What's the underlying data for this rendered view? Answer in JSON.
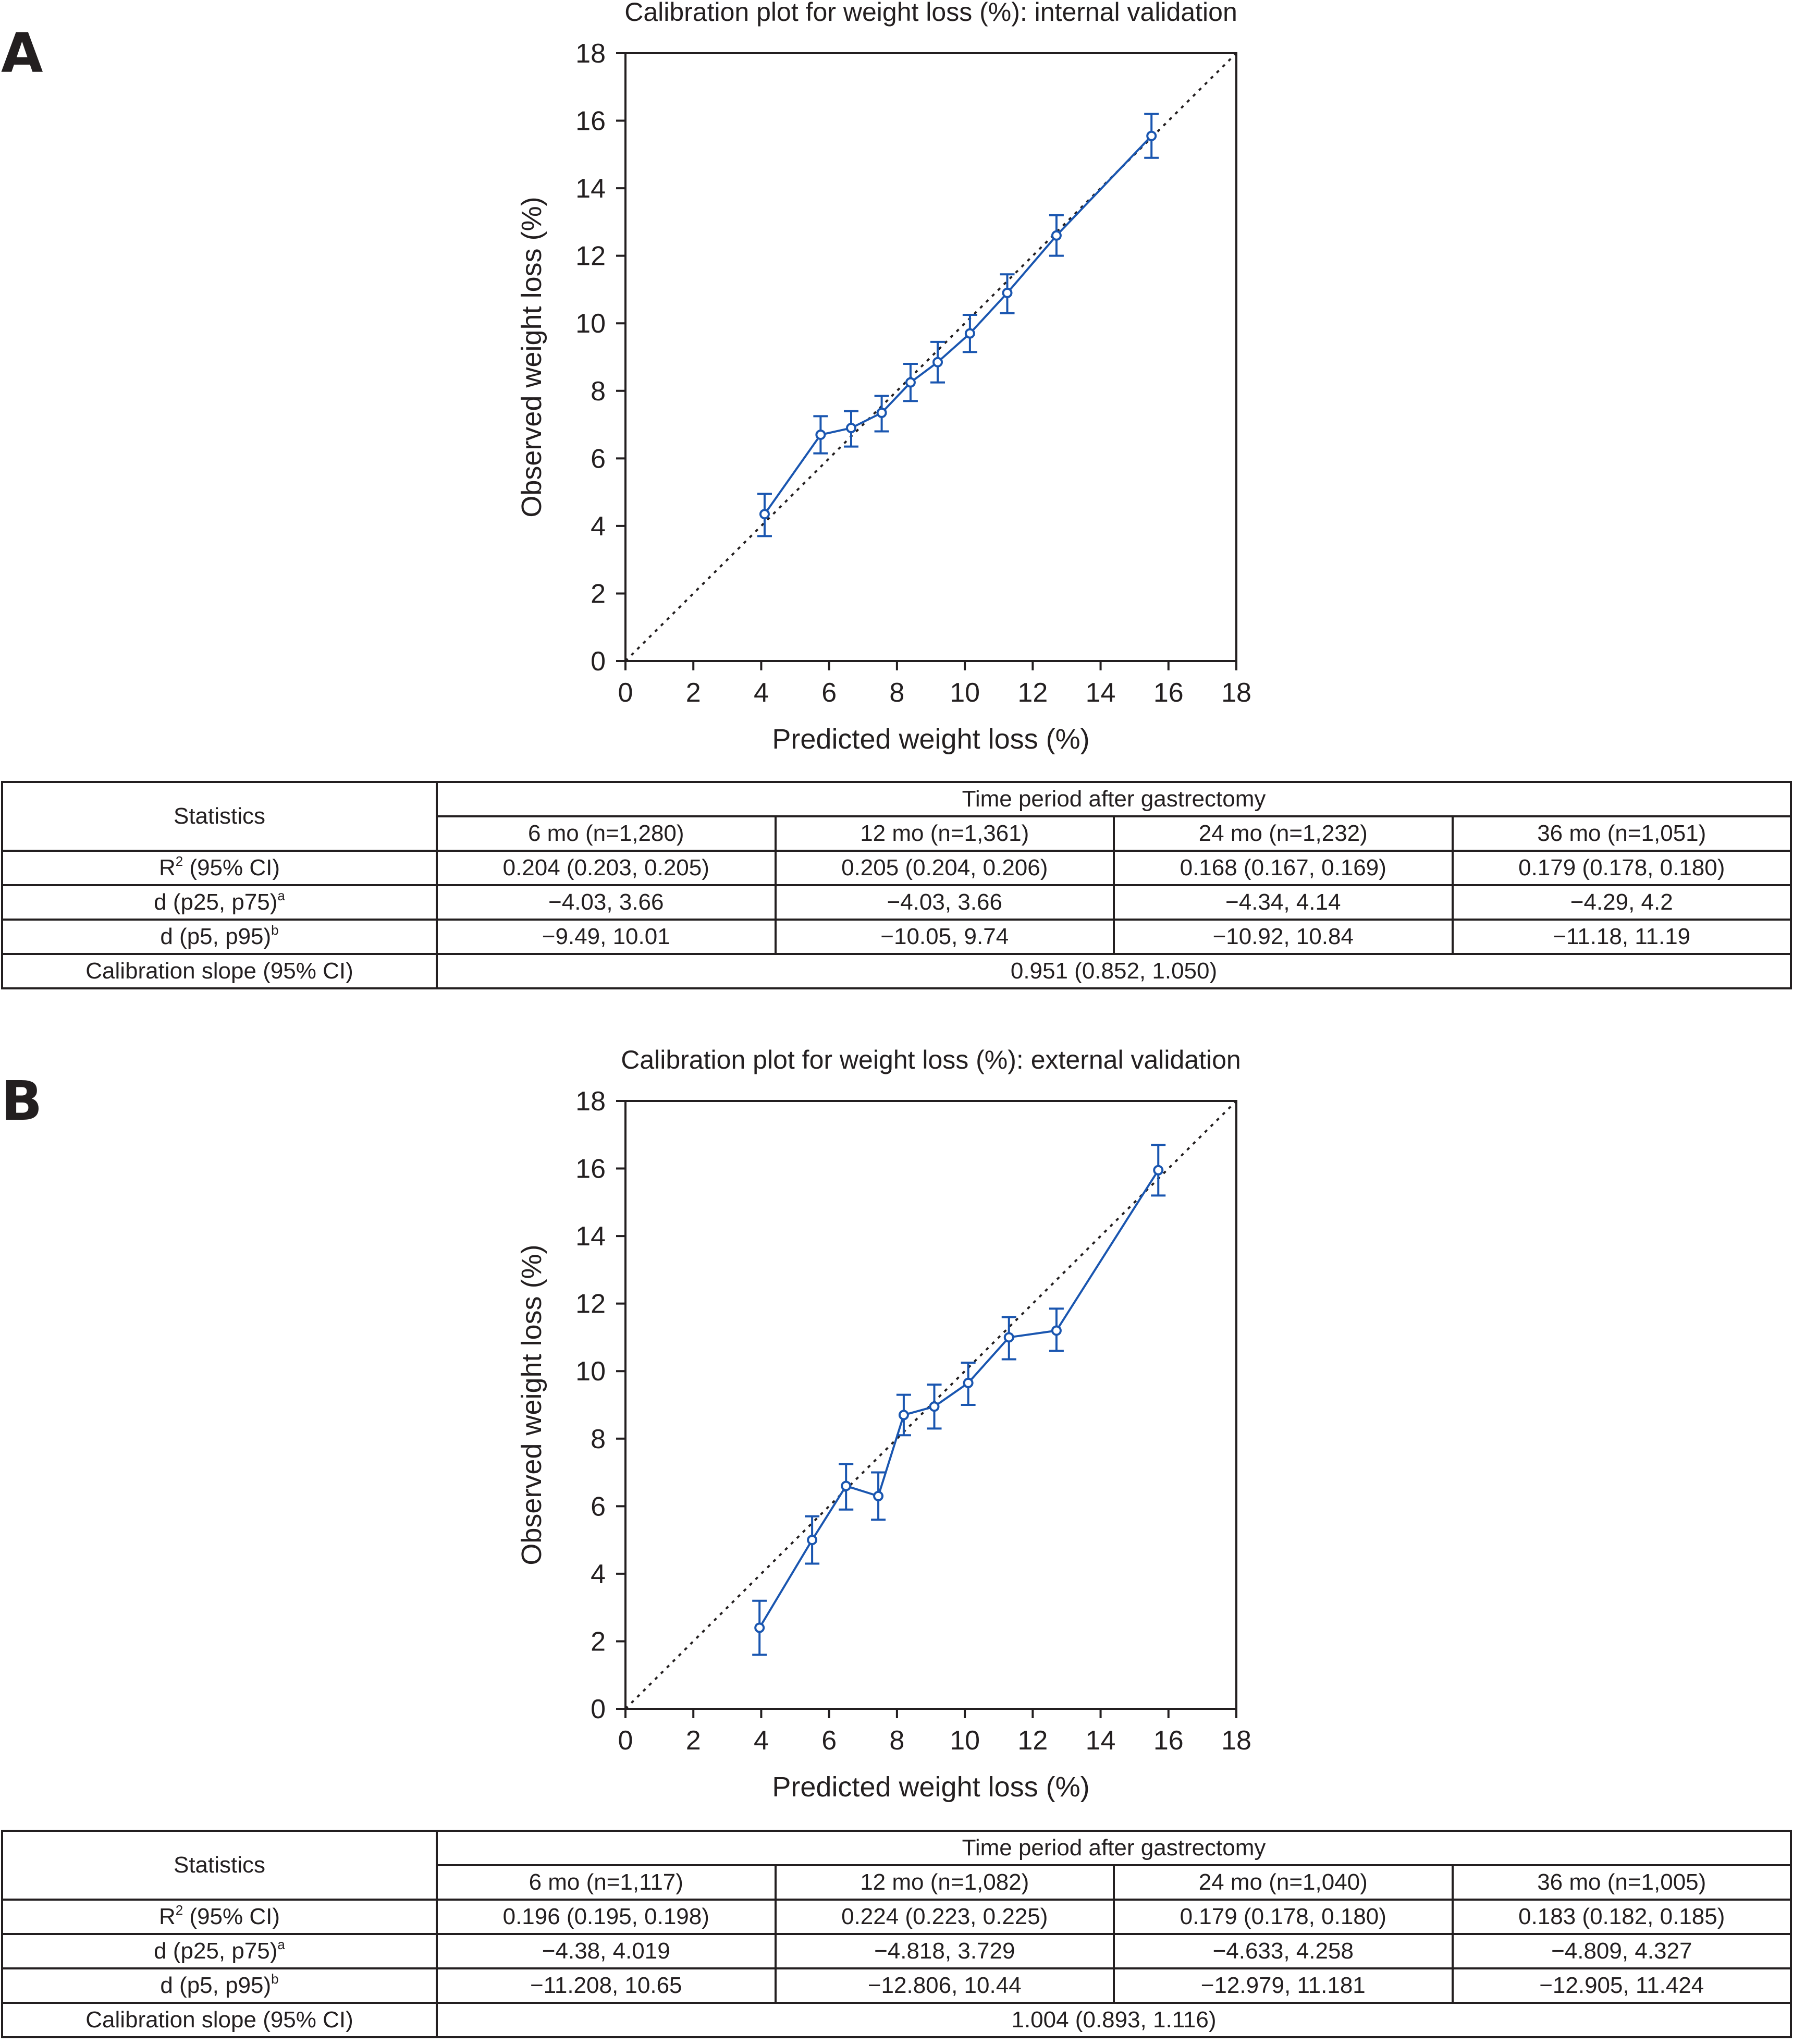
{
  "panels": [
    {
      "letter": "A",
      "chart_data": {
        "type": "line",
        "title": "Calibration plot for weight loss (%): internal validation",
        "xlabel": "Predicted weight loss (%)",
        "ylabel": "Observed weight loss (%)",
        "xlim": [
          0,
          18
        ],
        "ylim": [
          0,
          18
        ],
        "xticks": [
          0,
          2,
          4,
          6,
          8,
          10,
          12,
          14,
          16,
          18
        ],
        "yticks": [
          0,
          2,
          4,
          6,
          8,
          10,
          12,
          14,
          16,
          18
        ],
        "reference_line": "y = x (dotted)",
        "series": [
          {
            "x": [
              4.1,
              5.75,
              6.65,
              7.55,
              8.4,
              9.2,
              10.15,
              11.25,
              12.7,
              15.5
            ],
            "y": [
              4.35,
              6.7,
              6.9,
              7.35,
              8.25,
              8.85,
              9.7,
              10.9,
              12.6,
              15.55
            ],
            "y_low": [
              3.7,
              6.15,
              6.35,
              6.8,
              7.7,
              8.25,
              9.15,
              10.3,
              12.0,
              14.9
            ],
            "y_high": [
              4.95,
              7.25,
              7.4,
              7.85,
              8.8,
              9.45,
              10.25,
              11.45,
              13.2,
              16.2
            ],
            "color": "#1a56b0"
          }
        ],
        "grid": false,
        "legend": "none"
      },
      "table": {
        "header_label": "Statistics",
        "group_header": "Time period after gastrectomy",
        "columns": [
          "6 mo (n=1,280)",
          "12 mo (n=1,361)",
          "24 mo (n=1,232)",
          "36 mo (n=1,051)"
        ],
        "rows": [
          {
            "label": "R",
            "label_sup": "2",
            "label_rest": " (95% CI)",
            "cells": [
              "0.204 (0.203, 0.205)",
              "0.205 (0.204, 0.206)",
              "0.168 (0.167, 0.169)",
              "0.179 (0.178, 0.180)"
            ]
          },
          {
            "label": "d (p25, p75)",
            "label_sup": "a",
            "label_rest": "",
            "cells": [
              "−4.03, 3.66",
              "−4.03, 3.66",
              "−4.34, 4.14",
              "−4.29, 4.2"
            ]
          },
          {
            "label": "d (p5, p95)",
            "label_sup": "b",
            "label_rest": "",
            "cells": [
              "−9.49, 10.01",
              "−10.05, 9.74",
              "−10.92, 10.84",
              "−11.18, 11.19"
            ]
          }
        ],
        "slope_label": "Calibration slope (95% CI)",
        "slope_value": "0.951 (0.852, 1.050)"
      }
    },
    {
      "letter": "B",
      "chart_data": {
        "type": "line",
        "title": "Calibration plot for weight loss (%): external validation",
        "xlabel": "Predicted weight loss (%)",
        "ylabel": "Observed weight loss (%)",
        "xlim": [
          0,
          18
        ],
        "ylim": [
          0,
          18
        ],
        "xticks": [
          0,
          2,
          4,
          6,
          8,
          10,
          12,
          14,
          16,
          18
        ],
        "yticks": [
          0,
          2,
          4,
          6,
          8,
          10,
          12,
          14,
          16,
          18
        ],
        "reference_line": "y = x (dotted)",
        "series": [
          {
            "x": [
              3.95,
              5.5,
              6.5,
              7.45,
              8.2,
              9.1,
              10.1,
              11.3,
              12.7,
              15.7
            ],
            "y": [
              2.4,
              5.0,
              6.6,
              6.3,
              8.7,
              8.95,
              9.65,
              11.0,
              11.2,
              15.95
            ],
            "y_low": [
              1.6,
              4.3,
              5.9,
              5.6,
              8.1,
              8.3,
              9.0,
              10.35,
              10.6,
              15.2
            ],
            "y_high": [
              3.2,
              5.7,
              7.25,
              7.0,
              9.3,
              9.6,
              10.25,
              11.6,
              11.85,
              16.7
            ],
            "color": "#1a56b0"
          }
        ],
        "grid": false,
        "legend": "none"
      },
      "table": {
        "header_label": "Statistics",
        "group_header": "Time period after gastrectomy",
        "columns": [
          "6 mo (n=1,117)",
          "12 mo (n=1,082)",
          "24 mo (n=1,040)",
          "36 mo (n=1,005)"
        ],
        "rows": [
          {
            "label": "R",
            "label_sup": "2",
            "label_rest": " (95% CI)",
            "cells": [
              "0.196 (0.195, 0.198)",
              "0.224 (0.223, 0.225)",
              "0.179 (0.178, 0.180)",
              "0.183 (0.182, 0.185)"
            ]
          },
          {
            "label": "d (p25, p75)",
            "label_sup": "a",
            "label_rest": "",
            "cells": [
              "−4.38, 4.019",
              "−4.818, 3.729",
              "−4.633, 4.258",
              "−4.809, 4.327"
            ]
          },
          {
            "label": "d (p5, p95)",
            "label_sup": "b",
            "label_rest": "",
            "cells": [
              "−11.208, 10.65",
              "−12.806, 10.44",
              "−12.979, 11.181",
              "−12.905, 11.424"
            ]
          }
        ],
        "slope_label": "Calibration slope (95% CI)",
        "slope_value": "1.004 (0.893, 1.116)"
      }
    }
  ]
}
